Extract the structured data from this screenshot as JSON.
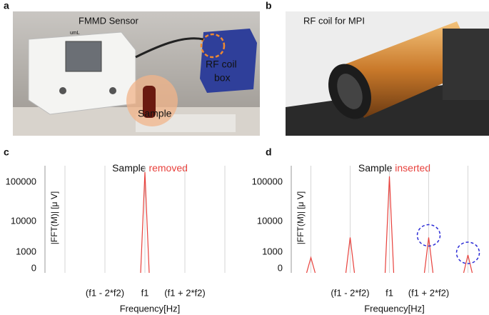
{
  "photos": [
    {
      "label": "a",
      "texts": [
        "FMMD Sensor",
        "umL",
        "RF coil",
        "box",
        "Sample"
      ]
    },
    {
      "label": "b",
      "texts": [
        "RF coil for MPI"
      ]
    }
  ],
  "chart_data": [
    {
      "type": "line",
      "panel_label": "c",
      "title": "Sample",
      "title_highlight": "removed",
      "ylabel": "|FFT(M)| [μ V]",
      "xlabel": "Frequency[Hz]",
      "categories": [
        null,
        "(f1 - 2*f2)",
        "f1",
        "(f1 + 2*f2)",
        null
      ],
      "values": [
        null,
        null,
        180000,
        null,
        null
      ],
      "color": "#e8413c",
      "yticks": [
        0,
        1000,
        10000,
        100000
      ],
      "grid": true,
      "highlight_indices": []
    },
    {
      "type": "line",
      "panel_label": "d",
      "title": "Sample",
      "title_highlight": "inserted",
      "ylabel": "|FFT(M)| [μ V]",
      "xlabel": "Frequency[Hz]",
      "categories": [
        null,
        "(f1 - 2*f2)",
        "f1",
        "(f1 + 2*f2)",
        null
      ],
      "values": [
        100,
        3000,
        140000,
        3000,
        300
      ],
      "color": "#e8413c",
      "yticks": [
        0,
        1000,
        10000,
        100000
      ],
      "grid": true,
      "highlight_indices": [
        3,
        4
      ]
    }
  ]
}
